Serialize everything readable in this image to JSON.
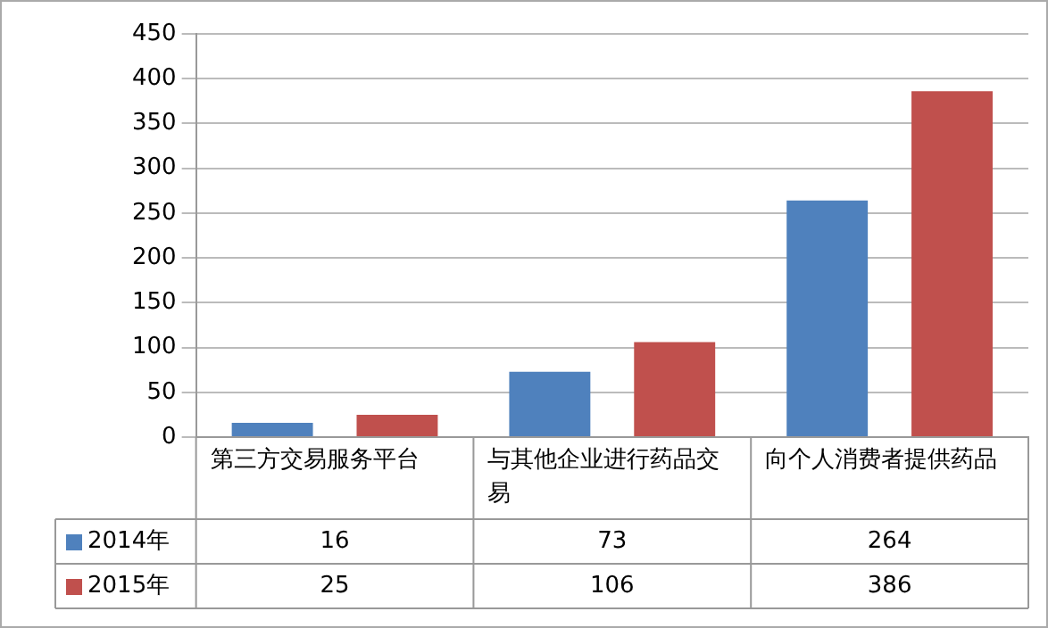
{
  "chart_data": {
    "type": "bar",
    "categories": [
      "第三方交易服务平台",
      "与其他企业进行药品交易",
      "向个人消费者提供药品"
    ],
    "series": [
      {
        "name": "2014年",
        "color": "#4f81bd",
        "values": [
          16,
          73,
          264
        ]
      },
      {
        "name": "2015年",
        "color": "#c0504d",
        "values": [
          25,
          106,
          386
        ]
      }
    ],
    "ylim": [
      0,
      450
    ],
    "yticks": [
      0,
      50,
      100,
      150,
      200,
      250,
      300,
      350,
      400,
      450
    ],
    "grid": "y",
    "legend": "bottom",
    "data_labels": true
  }
}
